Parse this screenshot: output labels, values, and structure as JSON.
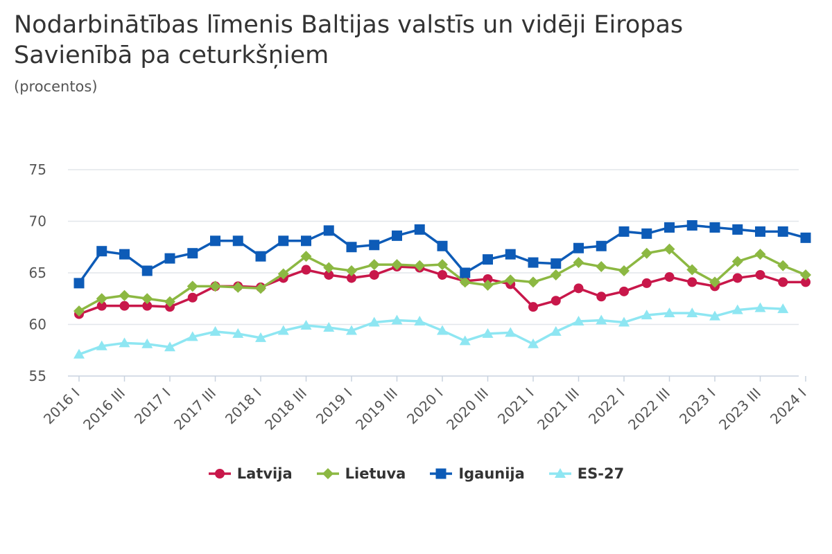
{
  "chart_data": {
    "type": "line",
    "title": "Nodarbinātības līmenis Baltijas valstīs un vidēji Eiropas Savienībā pa ceturkšņiem",
    "subtitle": "(procentos)",
    "ylim": [
      55,
      75
    ],
    "yticks": [
      "55",
      "60",
      "65",
      "70",
      "75"
    ],
    "x": [
      "2016 I",
      "2016 II",
      "2016 III",
      "2016 IV",
      "2017 I",
      "2017 II",
      "2017 III",
      "2017 IV",
      "2018 I",
      "2018 II",
      "2018 III",
      "2018 IV",
      "2019 I",
      "2019 II",
      "2019 III",
      "2019 IV",
      "2020 I",
      "2020 II",
      "2020 III",
      "2020 IV",
      "2021 I",
      "2021 II",
      "2021 III",
      "2021 IV",
      "2022 I",
      "2022 II",
      "2022 III",
      "2022 IV",
      "2023 I",
      "2023 II",
      "2023 III",
      "2023 IV",
      "2024 I"
    ],
    "xtick_labels": [
      "2016 I",
      "2016 III",
      "2017 I",
      "2017 III",
      "2018 I",
      "2018 III",
      "2019 I",
      "2019 III",
      "2020 I",
      "2020 III",
      "2021 I",
      "2021 III",
      "2022 I",
      "2022 III",
      "2023 I",
      "2023 III",
      "2024 I"
    ],
    "grid": true,
    "legend_position": "bottom",
    "series": [
      {
        "name": "Latvija",
        "color": "#c8174a",
        "marker": "circle",
        "values": [
          61.0,
          61.8,
          61.8,
          61.8,
          61.7,
          62.6,
          63.7,
          63.7,
          63.6,
          64.5,
          65.3,
          64.8,
          64.5,
          64.8,
          65.6,
          65.5,
          64.8,
          64.2,
          64.4,
          63.9,
          61.7,
          62.3,
          63.5,
          62.7,
          63.2,
          64.0,
          64.6,
          64.1,
          63.7,
          64.5,
          64.8,
          64.1,
          64.1
        ]
      },
      {
        "name": "Lietuva",
        "color": "#8cb842",
        "marker": "diamond",
        "values": [
          61.3,
          62.5,
          62.8,
          62.5,
          62.2,
          63.7,
          63.7,
          63.6,
          63.5,
          64.9,
          66.6,
          65.5,
          65.2,
          65.8,
          65.8,
          65.7,
          65.8,
          64.1,
          63.8,
          64.3,
          64.1,
          64.8,
          66.0,
          65.6,
          65.2,
          66.9,
          67.3,
          65.3,
          64.1,
          66.1,
          66.8,
          65.7,
          64.8
        ]
      },
      {
        "name": "Igaunija",
        "color": "#0d5bb7",
        "marker": "square",
        "values": [
          64.0,
          67.1,
          66.8,
          65.2,
          66.4,
          66.9,
          68.1,
          68.1,
          66.6,
          68.1,
          68.1,
          69.1,
          67.5,
          67.7,
          68.6,
          69.2,
          67.6,
          65.0,
          66.3,
          66.8,
          66.0,
          65.9,
          67.4,
          67.6,
          69.0,
          68.8,
          69.4,
          69.6,
          69.4,
          69.2,
          69.0,
          69.0,
          68.4
        ]
      },
      {
        "name": "ES-27",
        "color": "#8ee6f2",
        "marker": "triangle",
        "values": [
          57.1,
          57.9,
          58.2,
          58.1,
          57.8,
          58.8,
          59.3,
          59.1,
          58.7,
          59.4,
          59.9,
          59.7,
          59.4,
          60.2,
          60.4,
          60.3,
          59.4,
          58.4,
          59.1,
          59.2,
          58.1,
          59.3,
          60.3,
          60.4,
          60.2,
          60.9,
          61.1,
          61.1,
          60.8,
          61.4,
          61.6,
          61.5,
          null
        ]
      }
    ]
  }
}
